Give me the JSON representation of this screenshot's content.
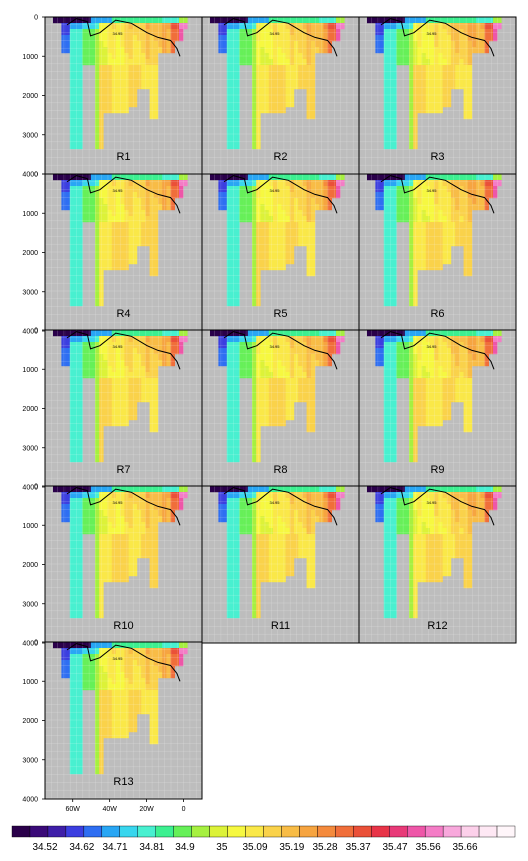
{
  "chart_data": {
    "type": "heatmap",
    "title": "",
    "xlabel": "",
    "ylabel": "",
    "panels": [
      "R1",
      "R2",
      "R3",
      "R4",
      "R5",
      "R6",
      "R7",
      "R8",
      "R9",
      "R10",
      "R11",
      "R12",
      "R13"
    ],
    "y_ticks": [
      0,
      1000,
      2000,
      3000,
      4000
    ],
    "y_tick_labels": [
      "0",
      "1000",
      "2000",
      "3000",
      "4000"
    ],
    "ylim": [
      4000,
      0
    ],
    "x_ticks": [
      -60,
      -40,
      -20,
      0
    ],
    "x_tick_labels": [
      "60W",
      "40W",
      "20W",
      "0"
    ],
    "xlim": [
      -75,
      10
    ],
    "contour_label": "34.95",
    "grid": true,
    "colorbar": {
      "labels": [
        "34.52",
        "34.62",
        "34.71",
        "34.81",
        "34.9",
        "35",
        "35.09",
        "35.19",
        "35.28",
        "35.37",
        "35.47",
        "35.56",
        "35.66"
      ],
      "label_values": [
        34.52,
        34.62,
        34.71,
        34.81,
        34.9,
        35.0,
        35.09,
        35.19,
        35.28,
        35.37,
        35.47,
        35.56,
        35.66
      ],
      "colors": [
        "#2a004a",
        "#3a0a78",
        "#3e1ea8",
        "#3b3ee0",
        "#2e6ef2",
        "#28a6f4",
        "#38d6ee",
        "#48f0d0",
        "#3cf090",
        "#66f058",
        "#a6f040",
        "#dcf238",
        "#f6f840",
        "#fae848",
        "#fad24a",
        "#f8bc46",
        "#f6a440",
        "#f48a3c",
        "#f06e3a",
        "#ea5038",
        "#e83448",
        "#e83a78",
        "#ee56a8",
        "#f47cc6",
        "#f8a8dc",
        "#fcd0ea",
        "#fee8f4",
        "#fff6fa"
      ]
    },
    "background_color": "#bdbdbd"
  }
}
